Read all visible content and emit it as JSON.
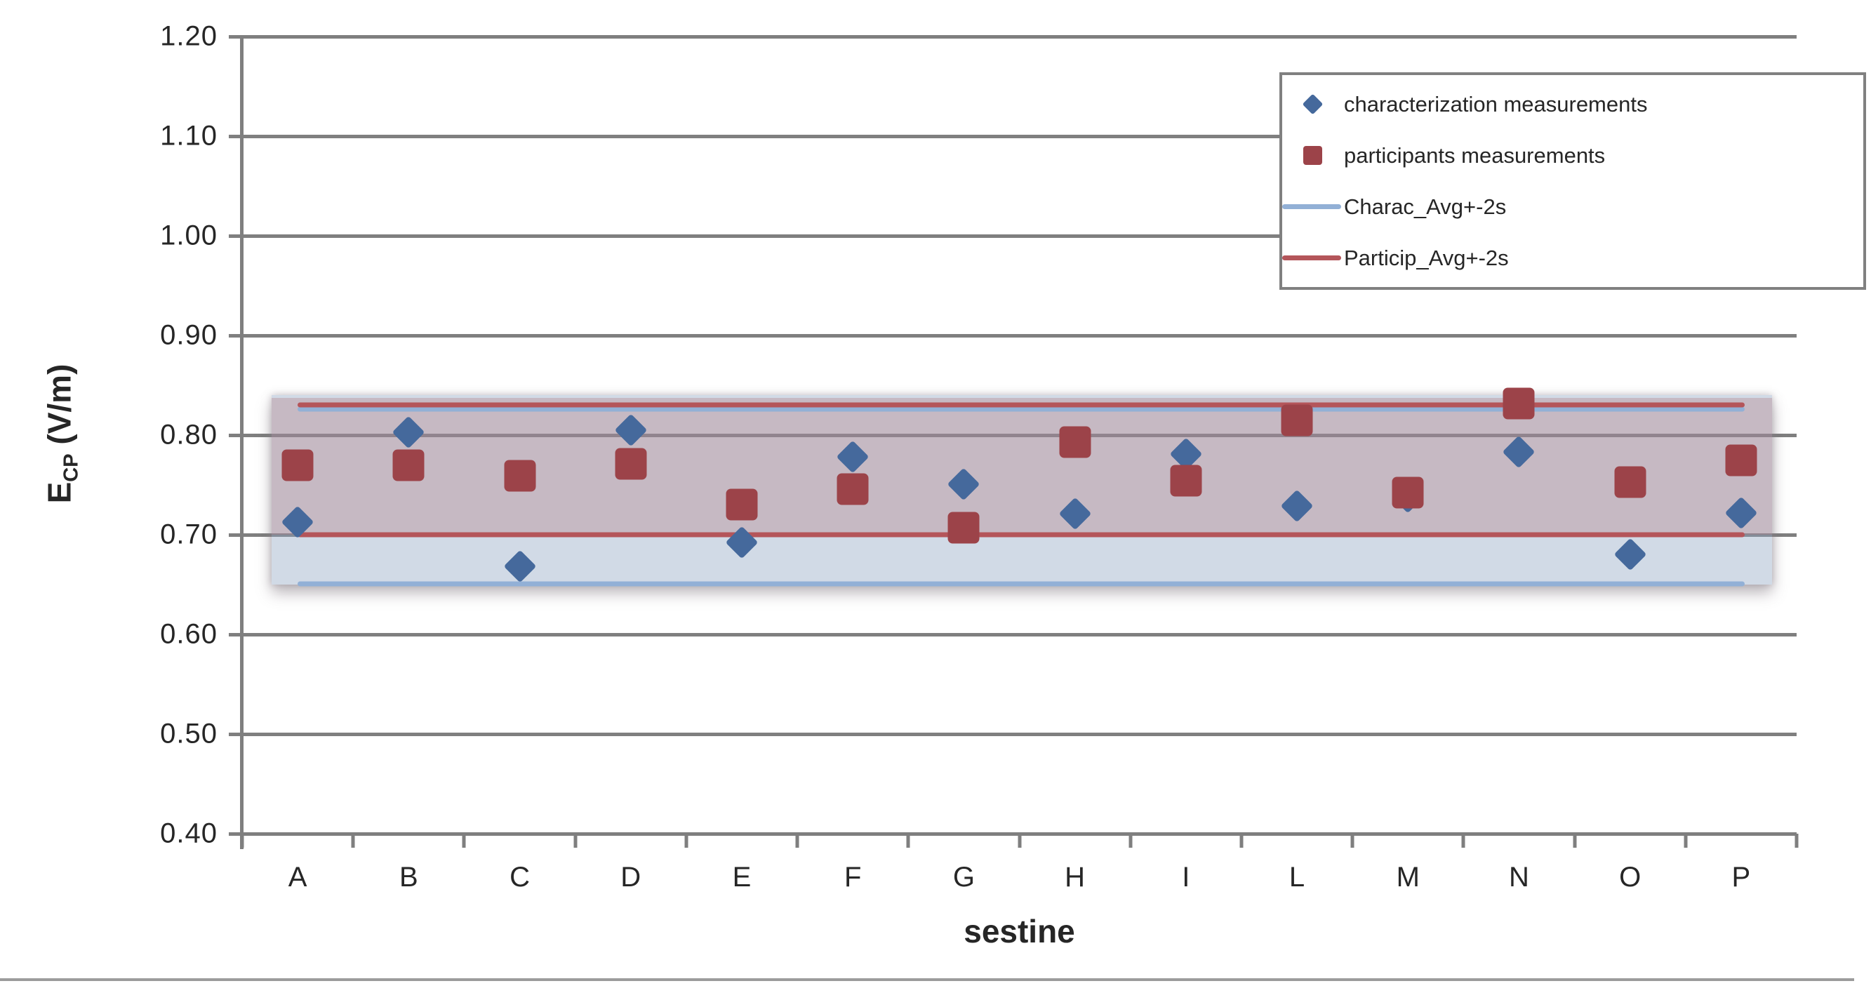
{
  "page": {
    "background": "#ffffff",
    "divider_color": "#9c9c9c"
  },
  "chart_data": {
    "type": "scatter",
    "title": "",
    "xlabel": "sestine",
    "ylabel": "E_CP (V/m)",
    "ylabel_main": "E",
    "ylabel_sub": "CP",
    "ylabel_unit": " (V/m)",
    "categories": [
      "A",
      "B",
      "C",
      "D",
      "E",
      "F",
      "G",
      "H",
      "I",
      "L",
      "M",
      "N",
      "O",
      "P"
    ],
    "ylim": [
      0.4,
      1.2
    ],
    "yticks": [
      {
        "value": 1.2,
        "label": "1.20"
      },
      {
        "value": 1.1,
        "label": "1.10"
      },
      {
        "value": 1.0,
        "label": "1.00"
      },
      {
        "value": 0.9,
        "label": "0.90"
      },
      {
        "value": 0.8,
        "label": "0.80"
      },
      {
        "value": 0.7,
        "label": "0.70"
      },
      {
        "value": 0.6,
        "label": "0.60"
      },
      {
        "value": 0.5,
        "label": "0.50"
      },
      {
        "value": 0.4,
        "label": "0.40"
      }
    ],
    "grid": "horizontal",
    "legend_position": "top-right",
    "series": [
      {
        "name": "characterization measurements",
        "marker": "diamond",
        "color": "#45699C",
        "values": [
          0.713,
          0.803,
          0.668,
          0.805,
          0.692,
          0.778,
          0.751,
          0.721,
          0.781,
          0.729,
          0.738,
          0.783,
          0.68,
          0.722
        ]
      },
      {
        "name": "participants measurements",
        "marker": "square",
        "color": "#9C4349",
        "values": [
          0.77,
          0.77,
          0.759,
          0.771,
          0.73,
          0.746,
          0.707,
          0.793,
          0.754,
          0.815,
          0.742,
          0.832,
          0.753,
          0.775
        ]
      }
    ],
    "bands": [
      {
        "name": "Charac_Avg+-2s",
        "line_low": 0.651,
        "line_high": 0.826,
        "rect_low": 0.65,
        "rect_high": 0.84,
        "line_color": "#92B0D6",
        "fill": "rgba(141,162,193,0.40)"
      },
      {
        "name": "Particip_Avg+-2s",
        "line_low": 0.7,
        "line_high": 0.83,
        "rect_low": 0.7,
        "rect_high": 0.837,
        "line_color": "#B4555A",
        "fill": "rgba(175,115,122,0.32)"
      }
    ],
    "colors": {
      "gridline": "#7f7f7f",
      "axis": "#7f7f7f",
      "text": "#262626",
      "legend_border": "#808080"
    }
  }
}
